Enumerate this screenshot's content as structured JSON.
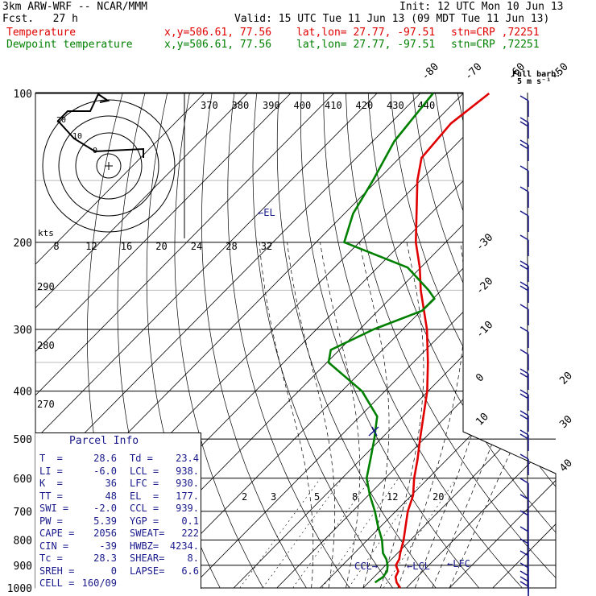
{
  "header": {
    "model": "3km ARW-WRF -- NCAR/MMM",
    "init": "Init: 12 UTC Mon 10 Jun 13",
    "fcst": "Fcst.   27 h",
    "valid": "Valid: 15 UTC Tue 11 Jun 13 (09 MDT Tue 11 Jun 13)",
    "temp_label": "Temperature",
    "dew_label": "Dewpoint temperature",
    "xy": "x,y=506.61, 77.56",
    "latlon": "lat,lon= 27.77, -97.51",
    "stn": "stn=CRP ,72251"
  },
  "colors": {
    "temperature": "#e00000",
    "dewpoint": "#008000",
    "wind_barbs": "#1a1a8c",
    "grid": "#000000"
  },
  "chart_data": {
    "type": "line",
    "chart_kind": "skew-T log-P sounding",
    "y_axis": "pressure (hPa), log scale",
    "ylim": [
      1000,
      100
    ],
    "pressure_labels": [
      "100",
      "200",
      "300",
      "400",
      "500",
      "600",
      "700",
      "800",
      "900",
      "1000"
    ],
    "isotherm_labels": [
      "-80",
      "-70",
      "-60",
      "-50",
      "-40",
      "-30",
      "-20",
      "-10",
      "0",
      "10",
      "20",
      "30",
      "40"
    ],
    "theta_labels": [
      "370",
      "380",
      "390",
      "400",
      "410",
      "420",
      "430",
      "440"
    ],
    "theta_left_labels": [
      "290",
      "280",
      "270"
    ],
    "mixing_labels": [
      "2",
      "3",
      "5",
      "8",
      "12",
      "20"
    ],
    "hodo_speed_labels": [
      "8",
      "12",
      "16",
      "20",
      "24",
      "28",
      "32"
    ],
    "hodo_unit": "kts",
    "hodo_ring_labels": [
      "20",
      "10",
      "0"
    ],
    "el_marker": "←EL",
    "ccl_marker": "CCL→",
    "lcl_marker": "←LCL",
    "lfc_marker": "←LFC",
    "barb_key": "Full barb:",
    "barb_key_value": "5 m s⁻¹",
    "series": [
      {
        "name": "Temperature",
        "color": "#e00000",
        "points": [
          [
            1000,
            28.6
          ],
          [
            975,
            26.5
          ],
          [
            950,
            25.0
          ],
          [
            925,
            24.3
          ],
          [
            900,
            22.4
          ],
          [
            875,
            21.8
          ],
          [
            850,
            20.6
          ],
          [
            800,
            18.4
          ],
          [
            750,
            15.7
          ],
          [
            700,
            12.8
          ],
          [
            650,
            10.4
          ],
          [
            600,
            6.7
          ],
          [
            550,
            3.2
          ],
          [
            500,
            -0.9
          ],
          [
            450,
            -5.3
          ],
          [
            400,
            -10.2
          ],
          [
            350,
            -16.6
          ],
          [
            300,
            -24.4
          ],
          [
            250,
            -34.8
          ],
          [
            225,
            -40.2
          ],
          [
            200,
            -46.9
          ],
          [
            175,
            -53.3
          ],
          [
            150,
            -60.7
          ],
          [
            135,
            -64.9
          ],
          [
            115,
            -66.0
          ],
          [
            100,
            -64.0
          ]
        ]
      },
      {
        "name": "Dewpoint temperature",
        "color": "#008000",
        "points": [
          [
            975,
            21.5
          ],
          [
            950,
            22.1
          ],
          [
            925,
            21.7
          ],
          [
            900,
            20.5
          ],
          [
            875,
            18.8
          ],
          [
            850,
            16.6
          ],
          [
            800,
            13.4
          ],
          [
            750,
            9.3
          ],
          [
            700,
            5.2
          ],
          [
            650,
            0.4
          ],
          [
            600,
            -4.3
          ],
          [
            550,
            -7.7
          ],
          [
            500,
            -11.5
          ],
          [
            450,
            -16.0
          ],
          [
            400,
            -25.3
          ],
          [
            350,
            -39.6
          ],
          [
            330,
            -42.0
          ],
          [
            300,
            -36.8
          ],
          [
            275,
            -29.8
          ],
          [
            260,
            -29.7
          ],
          [
            250,
            -33.0
          ],
          [
            225,
            -43.0
          ],
          [
            200,
            -63.5
          ],
          [
            175,
            -68.0
          ],
          [
            150,
            -71.0
          ],
          [
            125,
            -75.0
          ],
          [
            100,
            -77.0
          ]
        ]
      }
    ]
  },
  "parcel_info": {
    "title": "Parcel Info",
    "rows": [
      [
        "T  =",
        "28.6",
        "Td =",
        "23.4"
      ],
      [
        "LI =",
        "-6.0",
        "LCL =",
        "938."
      ],
      [
        "K  =",
        "36",
        "LFC =",
        "930."
      ],
      [
        "TT =",
        "48",
        "EL  =",
        "177."
      ],
      [
        "SWI =",
        "-2.0",
        "CCL =",
        "939."
      ],
      [
        "PW =",
        "5.39",
        "YGP =",
        "0.1"
      ],
      [
        "CAPE =",
        "2056",
        "SWEAT=",
        "222"
      ],
      [
        "CIN =",
        "-39",
        "HWBZ=",
        "4234."
      ],
      [
        "Tc =",
        "28.3",
        "SHEAR=",
        "8."
      ],
      [
        "SREH =",
        "0",
        "LAPSE=",
        "6.6"
      ],
      [
        "CELL =",
        "160/09",
        "",
        ""
      ]
    ]
  }
}
